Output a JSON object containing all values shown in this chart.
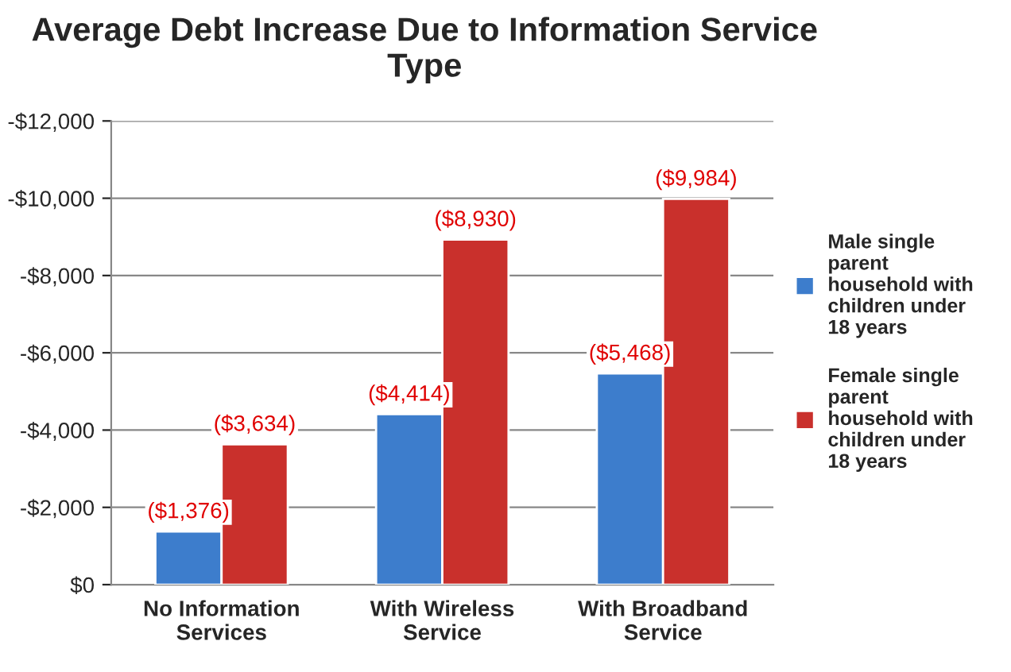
{
  "chart_data": {
    "type": "bar",
    "title": "Average Debt Increase Due to Information Service Type",
    "categories": [
      "No Information Services",
      "With Wireless Service",
      "With Broadband Service"
    ],
    "series": [
      {
        "name": "Male single parent household with children under 18 years",
        "color": "#3d7dcc",
        "values": [
          -1376,
          -4414,
          -5468
        ],
        "value_labels": [
          "($1,376)",
          "($4,414)",
          "($5,468)"
        ]
      },
      {
        "name": "Female single parent household with children under 18 years",
        "color": "#c9302c",
        "values": [
          -3634,
          -8930,
          -9984
        ],
        "value_labels": [
          "($3,634)",
          "($8,930)",
          "($9,984)"
        ]
      }
    ],
    "ylim": [
      0,
      -12000
    ],
    "yticks": [
      {
        "value": 0,
        "label": "$0"
      },
      {
        "value": -2000,
        "label": "-$2,000"
      },
      {
        "value": -4000,
        "label": "-$4,000"
      },
      {
        "value": -6000,
        "label": "-$6,000"
      },
      {
        "value": -8000,
        "label": "-$8,000"
      },
      {
        "value": -10000,
        "label": "-$10,000"
      },
      {
        "value": -12000,
        "label": "-$12,000"
      }
    ],
    "grid": "y",
    "legend": "right"
  }
}
